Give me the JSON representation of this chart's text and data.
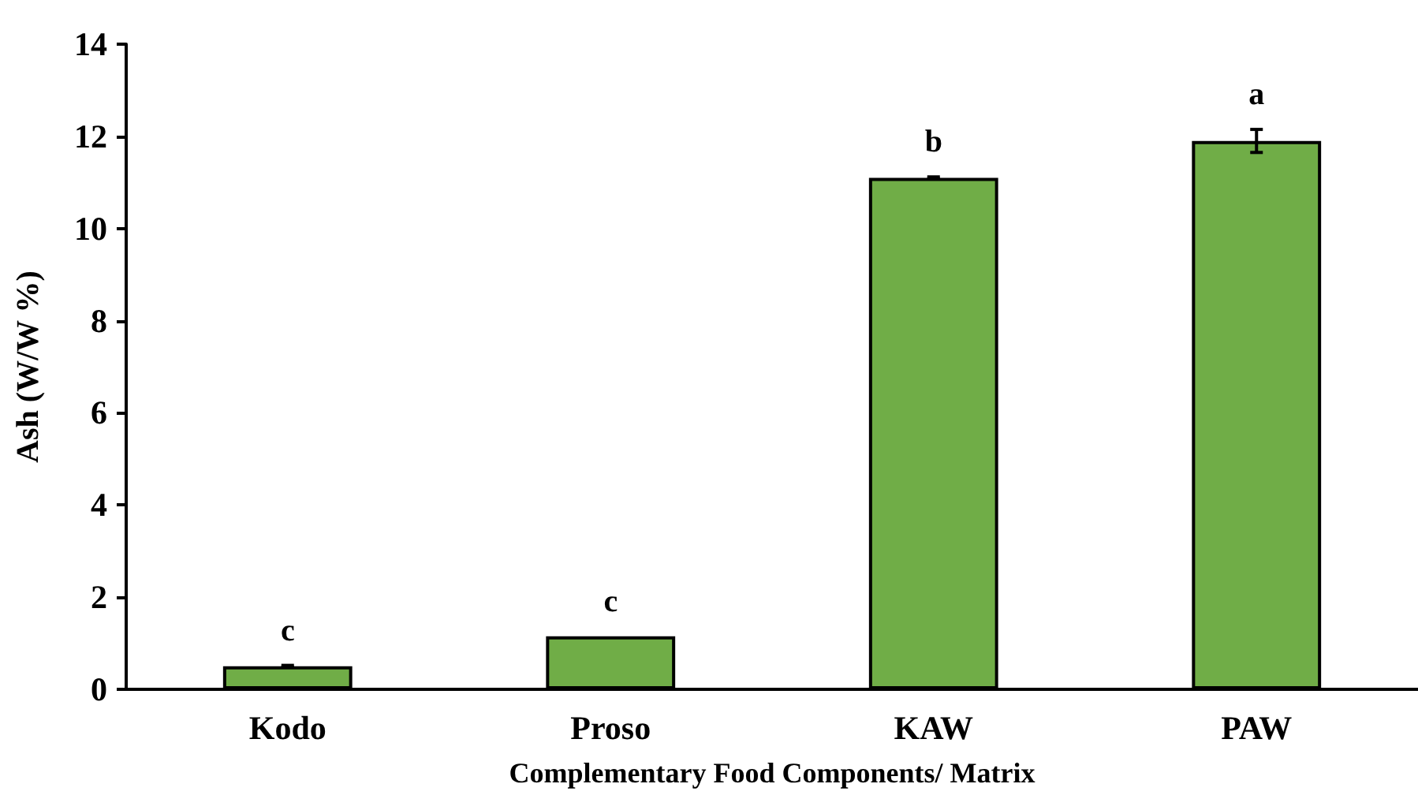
{
  "chart_data": {
    "type": "bar",
    "xlabel": "Complementary Food Components/ Matrix",
    "ylabel": "Ash (W/W %)",
    "categories": [
      "Kodo",
      "Proso",
      "KAW",
      "PAW"
    ],
    "values": [
      0.5,
      1.15,
      11.1,
      11.9
    ],
    "errors": [
      0.02,
      null,
      0.02,
      0.25
    ],
    "color": "#70ad47",
    "ylim": [
      0,
      14
    ],
    "yticks": [
      0,
      2,
      4,
      6,
      8,
      10,
      12,
      14
    ],
    "grid": false,
    "annotations": [
      "c",
      "c",
      "b",
      "a"
    ]
  }
}
